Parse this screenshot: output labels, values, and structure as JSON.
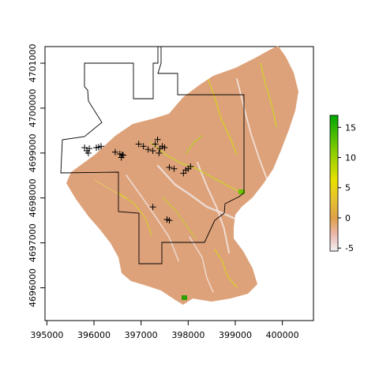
{
  "map": {
    "x_axis": {
      "ticks": [
        395000,
        396000,
        397000,
        398000,
        399000,
        400000
      ],
      "tick_labels": [
        "395000",
        "396000",
        "397000",
        "398000",
        "399000",
        "400000"
      ],
      "range": [
        394960,
        400660
      ]
    },
    "y_axis": {
      "ticks": [
        4696000,
        4697000,
        4698000,
        4699000,
        4700000,
        4701000
      ],
      "tick_labels": [
        "4696000",
        "4697000",
        "4698000",
        "4699000",
        "4700000",
        "4701000"
      ],
      "range": [
        4695270,
        4701370
      ]
    },
    "raster_colors": {
      "low": "#f2f2f2",
      "mid_low": "#e8a898",
      "mid": "#e0a04a",
      "mid_high": "#e8d800",
      "high": "#00a600"
    },
    "legend": {
      "ticks": [
        15,
        10,
        5,
        0,
        -5
      ],
      "tick_labels": [
        "15",
        "10",
        "5",
        "0",
        "-5"
      ],
      "range": [
        -5.5,
        17
      ]
    },
    "points": [
      [
        395800,
        4699120
      ],
      [
        395850,
        4699050
      ],
      [
        395900,
        4699100
      ],
      [
        395880,
        4699000
      ],
      [
        396050,
        4699120
      ],
      [
        396150,
        4699150
      ],
      [
        396100,
        4699130
      ],
      [
        396450,
        4699020
      ],
      [
        396550,
        4698980
      ],
      [
        396600,
        4698960
      ],
      [
        396580,
        4698900
      ],
      [
        396620,
        4698950
      ],
      [
        396950,
        4699200
      ],
      [
        397050,
        4699150
      ],
      [
        397150,
        4699080
      ],
      [
        397250,
        4699050
      ],
      [
        397300,
        4699200
      ],
      [
        397350,
        4699300
      ],
      [
        397400,
        4699100
      ],
      [
        397450,
        4699150
      ],
      [
        397500,
        4699120
      ],
      [
        397380,
        4699000
      ],
      [
        397600,
        4698680
      ],
      [
        397700,
        4698650
      ],
      [
        397900,
        4698550
      ],
      [
        397950,
        4698620
      ],
      [
        398050,
        4698700
      ],
      [
        398000,
        4698650
      ],
      [
        397250,
        4697800
      ],
      [
        397550,
        4697520
      ],
      [
        397600,
        4697500
      ]
    ]
  }
}
